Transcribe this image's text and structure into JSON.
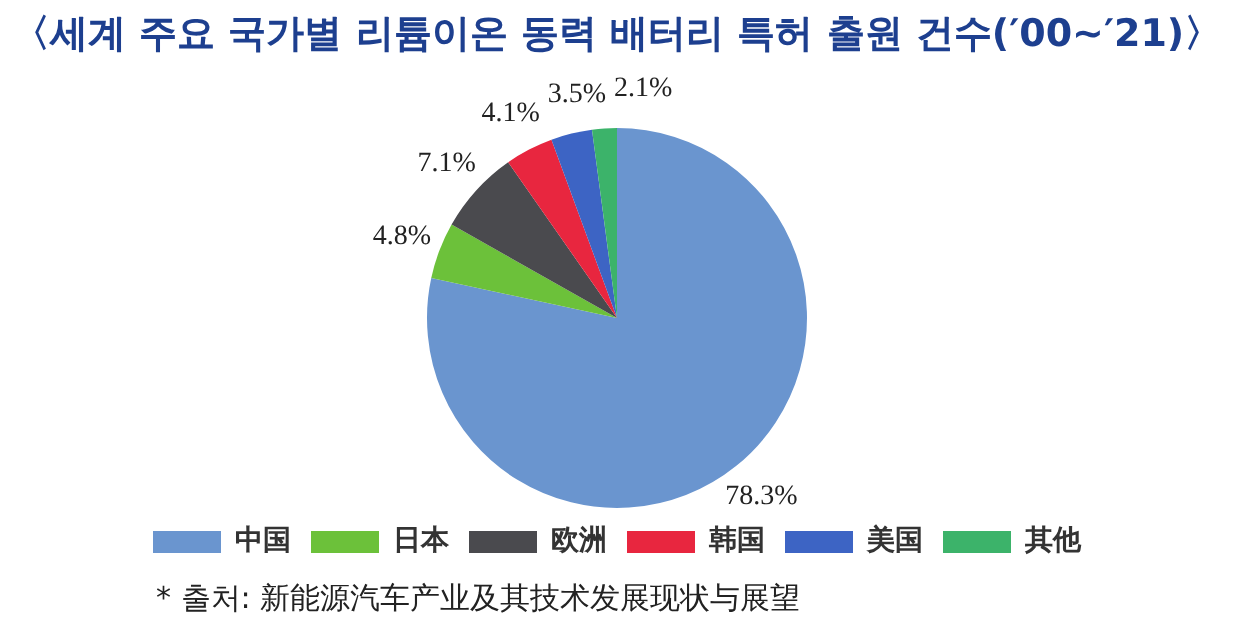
{
  "chart_data": {
    "type": "pie",
    "title": "〈세계 주요 국가별 리튬이온 동력 배터리 특허 출원 건수(′00~′21)〉",
    "categories": [
      "中国",
      "日本",
      "欧洲",
      "韩国",
      "美国",
      "其他"
    ],
    "values": [
      78.3,
      4.8,
      7.1,
      4.1,
      3.5,
      2.1
    ],
    "colors": [
      "#6a95cf",
      "#6cc13a",
      "#4a4a4e",
      "#e8263f",
      "#3d64c4",
      "#3cb36a"
    ],
    "value_labels": [
      "78.3%",
      "4.8%",
      "7.1%",
      "4.1%",
      "3.5%",
      "2.1%"
    ],
    "legend": "bottom",
    "annotations": [
      "* 출처: 新能源汽车产业及其技术发展现状与展望"
    ]
  }
}
